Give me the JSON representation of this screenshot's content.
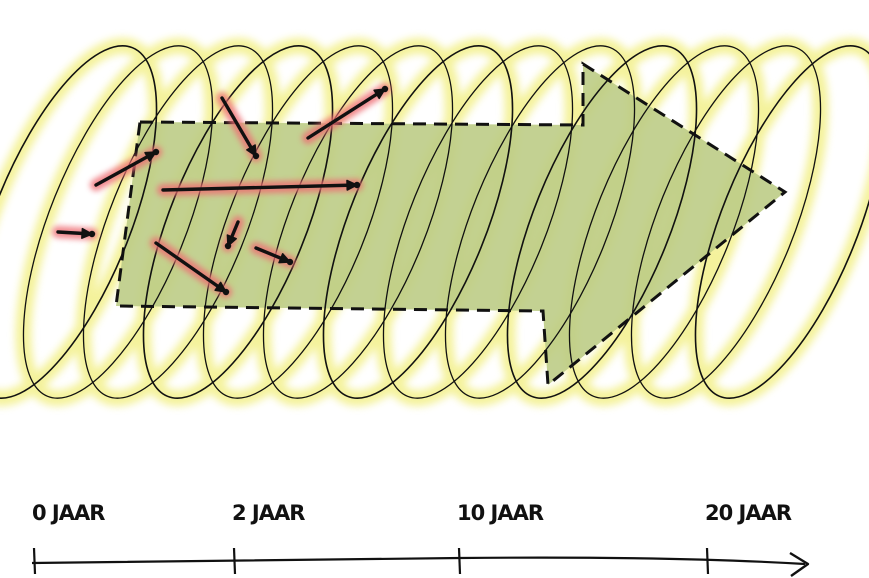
{
  "timeline": {
    "ticks": [
      {
        "label": "0 JAAR",
        "years": 0
      },
      {
        "label": "2 JAAR",
        "years": 2
      },
      {
        "label": "10 JAAR",
        "years": 10
      },
      {
        "label": "20 JAAR",
        "years": 20
      }
    ]
  },
  "colors": {
    "ink": "#111111",
    "arrow_fill": "#bccc86",
    "glow_yellow": "#f1ee7c",
    "glow_red": "#ee6d73",
    "background": "#ffffff"
  },
  "icons": {
    "timeline_end": "arrow-right-icon",
    "big_arrow": "dashed-block-arrow"
  }
}
